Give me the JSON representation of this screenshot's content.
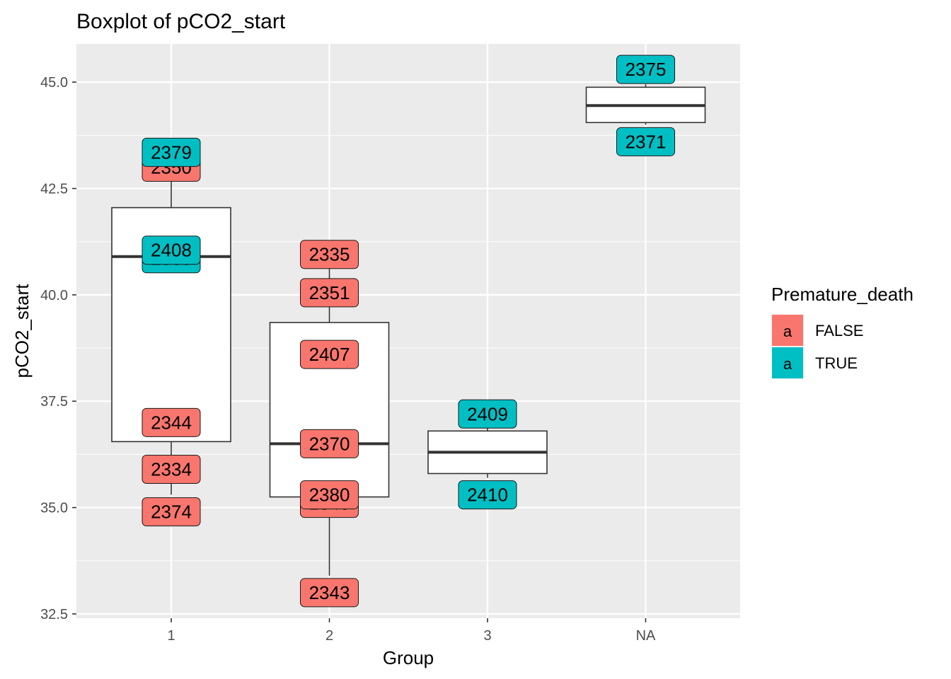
{
  "chart_data": {
    "type": "boxplot",
    "title": "Boxplot of  pCO2_start",
    "xlabel": "Group",
    "ylabel": "pCO2_start",
    "categories": [
      "1",
      "2",
      "3",
      "NA"
    ],
    "ylim": [
      32.4,
      45.9
    ],
    "yticks": [
      32.5,
      35.0,
      37.5,
      40.0,
      42.5,
      45.0
    ],
    "ytick_labels": [
      "32.5",
      "35.0",
      "37.5",
      "40.0",
      "42.5",
      "45.0"
    ],
    "grid": true,
    "boxes": [
      {
        "category": "1",
        "whisker_low": 35.3,
        "q1": 36.55,
        "median": 40.9,
        "q3": 42.05,
        "whisker_high": 43.2
      },
      {
        "category": "2",
        "whisker_low": 33.4,
        "q1": 35.25,
        "median": 36.5,
        "q3": 39.35,
        "whisker_high": 40.7
      },
      {
        "category": "3",
        "whisker_low": 35.7,
        "q1": 35.8,
        "median": 36.3,
        "q3": 36.8,
        "whisker_high": 36.95
      },
      {
        "category": "NA",
        "whisker_low": 44.0,
        "q1": 44.05,
        "median": 44.45,
        "q3": 44.88,
        "whisker_high": 44.95
      }
    ],
    "points": [
      {
        "category": "1",
        "y": 43.0,
        "label": "2350",
        "premature_death": "FALSE"
      },
      {
        "category": "1",
        "y": 43.35,
        "label": "2379",
        "premature_death": "TRUE"
      },
      {
        "category": "1",
        "y": 40.85,
        "label": "2369",
        "premature_death": "TRUE"
      },
      {
        "category": "1",
        "y": 41.05,
        "label": "2408",
        "premature_death": "TRUE"
      },
      {
        "category": "1",
        "y": 37.0,
        "label": "2344",
        "premature_death": "FALSE"
      },
      {
        "category": "1",
        "y": 35.9,
        "label": "2334",
        "premature_death": "FALSE"
      },
      {
        "category": "1",
        "y": 34.9,
        "label": "2374",
        "premature_death": "FALSE"
      },
      {
        "category": "2",
        "y": 40.95,
        "label": "2335",
        "premature_death": "FALSE"
      },
      {
        "category": "2",
        "y": 40.05,
        "label": "2351",
        "premature_death": "FALSE"
      },
      {
        "category": "2",
        "y": 38.6,
        "label": "2407",
        "premature_death": "FALSE"
      },
      {
        "category": "2",
        "y": 36.5,
        "label": "2370",
        "premature_death": "FALSE"
      },
      {
        "category": "2",
        "y": 35.1,
        "label": "2340",
        "premature_death": "FALSE"
      },
      {
        "category": "2",
        "y": 35.3,
        "label": "2380",
        "premature_death": "FALSE"
      },
      {
        "category": "2",
        "y": 33.0,
        "label": "2343",
        "premature_death": "FALSE"
      },
      {
        "category": "3",
        "y": 37.2,
        "label": "2409",
        "premature_death": "TRUE"
      },
      {
        "category": "3",
        "y": 35.3,
        "label": "2410",
        "premature_death": "TRUE"
      },
      {
        "category": "NA",
        "y": 45.3,
        "label": "2375",
        "premature_death": "TRUE"
      },
      {
        "category": "NA",
        "y": 43.6,
        "label": "2371",
        "premature_death": "TRUE"
      }
    ],
    "legend": {
      "title": "Premature_death",
      "placement": "right",
      "key_glyph": "a",
      "entries": [
        {
          "label": "FALSE",
          "color": "#F8766D"
        },
        {
          "label": "TRUE",
          "color": "#00BFC4"
        }
      ]
    },
    "colors": {
      "FALSE": "#F8766D",
      "TRUE": "#00BFC4",
      "panel_bg": "#EBEBEB",
      "grid": "#FFFFFF"
    }
  }
}
